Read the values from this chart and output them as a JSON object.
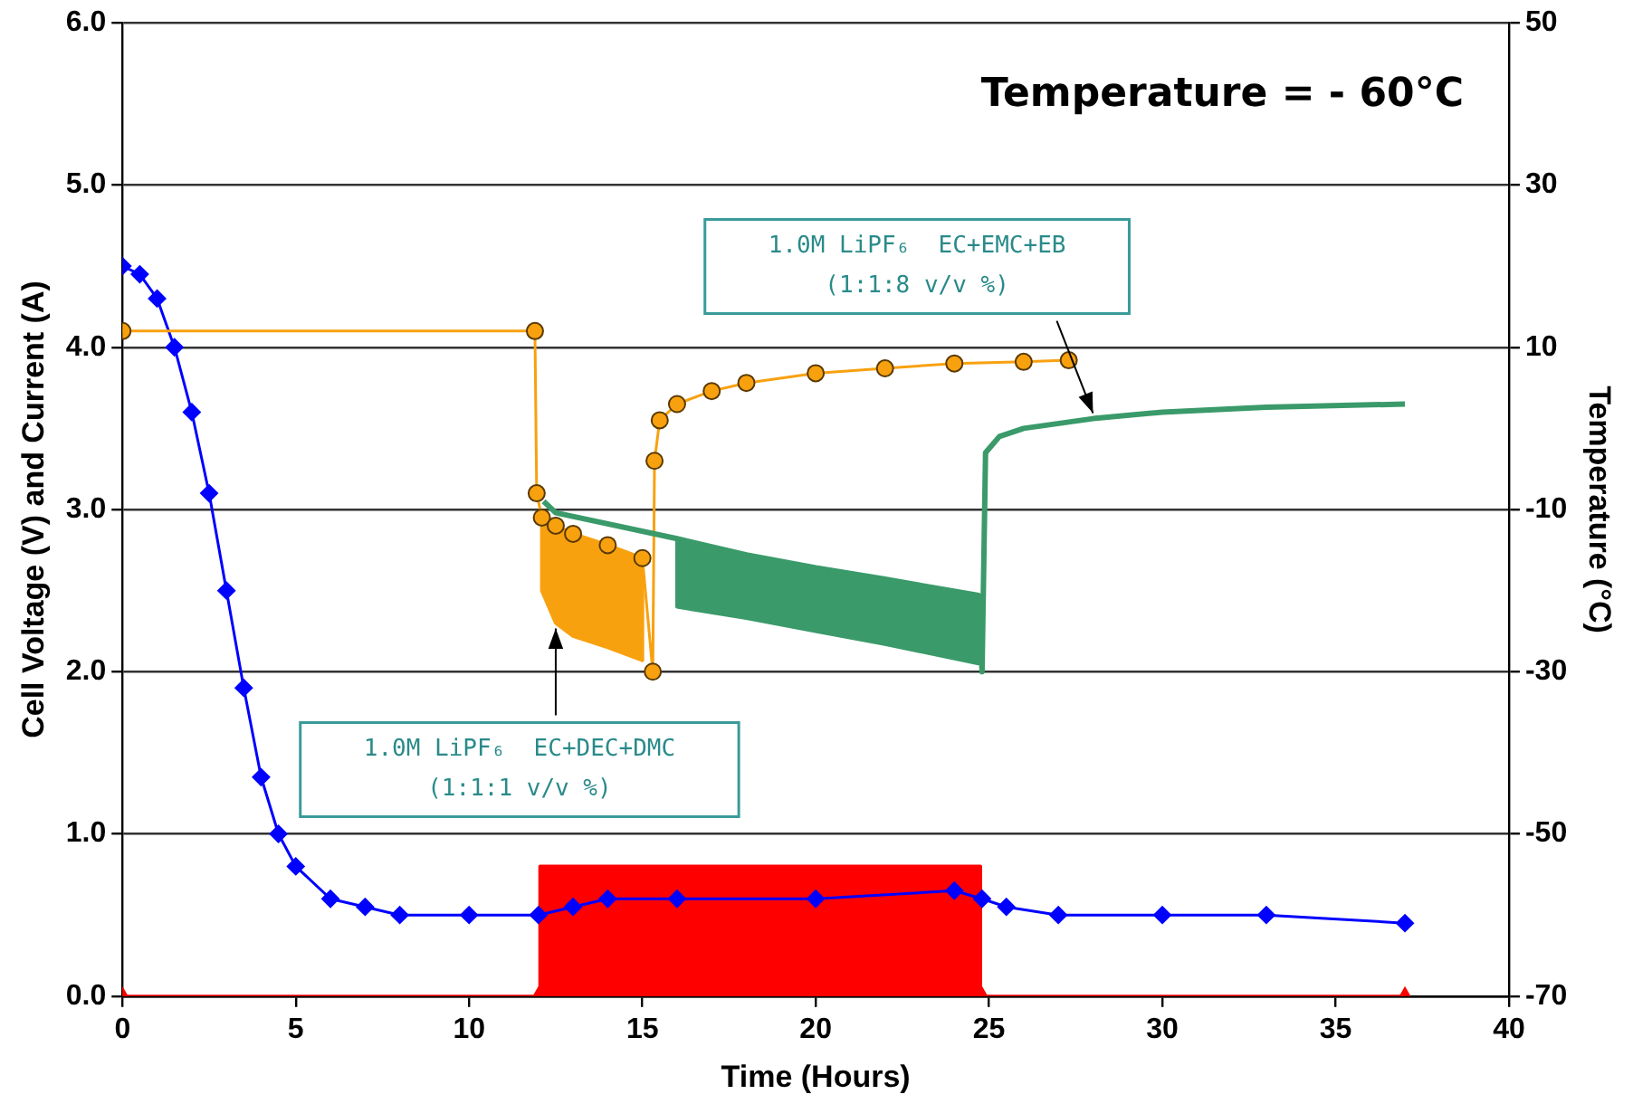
{
  "chart_data": {
    "type": "line",
    "xlabel": "Time (Hours)",
    "ylabel": "Cell Voltage (V) and Current (A)",
    "y2label": "Temperature (°C)",
    "xlim": [
      0,
      40
    ],
    "xticks": [
      0,
      5,
      10,
      15,
      20,
      25,
      30,
      35,
      40
    ],
    "ylim": [
      0,
      6
    ],
    "yticks": [
      {
        "value": 0,
        "label": "0.0"
      },
      {
        "value": 1,
        "label": "1.0"
      },
      {
        "value": 2,
        "label": "2.0"
      },
      {
        "value": 3,
        "label": "3.0"
      },
      {
        "value": 4,
        "label": "4.0"
      },
      {
        "value": 5,
        "label": "5.0"
      },
      {
        "value": 6,
        "label": "6.0"
      }
    ],
    "y2lim": [
      -70,
      50
    ],
    "y2ticks": [
      -70,
      -50,
      -30,
      -10,
      10,
      30,
      50
    ],
    "grid": "y",
    "legend": false,
    "series": [
      {
        "color": "#3a9a6a",
        "marker": "none",
        "x": [
          12.15,
          12.5,
          16,
          18,
          20,
          22,
          24.7,
          24.8,
          24.9,
          25.3,
          26,
          28,
          30,
          33,
          37
        ],
        "values": [
          3.05,
          2.98,
          2.82,
          2.72,
          2.64,
          2.57,
          2.47,
          2.0,
          3.35,
          3.45,
          3.5,
          3.56,
          3.6,
          3.63,
          3.65
        ],
        "lower": [
          null,
          null,
          2.4,
          2.33,
          2.25,
          2.17,
          2.05,
          null,
          null,
          null,
          null,
          null,
          null,
          null,
          null
        ],
        "upper": [
          null,
          null,
          2.82,
          2.72,
          2.64,
          2.57,
          2.47,
          null,
          null,
          null,
          null,
          null,
          null,
          null,
          null
        ]
      },
      {
        "color": "#f8a10f",
        "marker": "circle",
        "x": [
          0,
          11.9,
          11.95,
          12.1,
          12.5,
          13,
          14,
          15,
          15.3,
          15.35,
          15.5,
          16,
          17,
          18,
          20,
          22,
          24,
          26,
          27.3
        ],
        "values": [
          4.1,
          4.1,
          3.1,
          2.95,
          2.9,
          2.85,
          2.78,
          2.7,
          2.0,
          3.3,
          3.55,
          3.65,
          3.73,
          3.78,
          3.84,
          3.87,
          3.9,
          3.91,
          3.92
        ],
        "lower": [
          null,
          null,
          null,
          2.5,
          2.3,
          2.22,
          2.15,
          2.07,
          null,
          null,
          null,
          null,
          null,
          null,
          null,
          null,
          null,
          null,
          null
        ],
        "upper": [
          null,
          null,
          null,
          2.95,
          2.9,
          2.85,
          2.78,
          2.7,
          null,
          null,
          null,
          null,
          null,
          null,
          null,
          null,
          null,
          null,
          null
        ]
      },
      {
        "color": "#ff0000",
        "marker": "triangle",
        "x": [
          0,
          12,
          12.05,
          24.75,
          24.8,
          37
        ],
        "values": [
          0,
          0,
          0,
          0,
          0,
          0
        ],
        "lower": [
          null,
          null,
          0,
          0,
          null,
          null
        ],
        "upper": [
          null,
          null,
          0.8,
          0.8,
          null,
          null
        ]
      },
      {
        "color": "#0000ff",
        "marker": "diamond",
        "axis": "y2",
        "x": [
          0,
          0.5,
          1,
          1.5,
          2,
          2.5,
          3,
          3.5,
          4,
          4.5,
          5,
          6,
          7,
          8,
          10,
          12,
          13,
          14,
          16,
          20,
          24,
          24.8,
          25.5,
          27,
          30,
          33,
          37
        ],
        "values": [
          20,
          19,
          16,
          10,
          2,
          -8,
          -20,
          -32,
          -43,
          -50,
          -54,
          -58,
          -59,
          -60,
          -60,
          -60,
          -59,
          -58,
          -58,
          -58,
          -57,
          -58,
          -59,
          -60,
          -60,
          -60,
          -61
        ]
      }
    ],
    "annotations": [
      "Temperature = - 60°C",
      {
        "text": "1.0M LiPF₆  EC+EMC+EB\n(1:1:8 v/v %)",
        "x": 28,
        "y": 3.56
      },
      {
        "text": "1.0M LiPF₆  EC+DEC+DMC\n(1:1:1 v/v %)",
        "x": 12.5,
        "y": 2.3
      }
    ]
  }
}
